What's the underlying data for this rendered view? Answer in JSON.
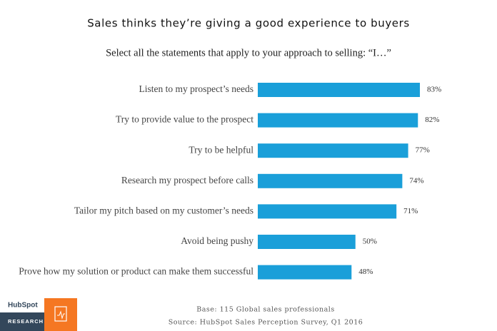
{
  "chart_data": {
    "type": "hbar",
    "title": "Sales thinks they’re giving a good experience to buyers",
    "subtitle": "Select all the statements that apply to your approach to selling: “I…”",
    "categories": [
      "Listen to my prospect’s needs",
      "Try to provide value to the prospect",
      "Try to be helpful",
      "Research my prospect before calls",
      "Tailor my pitch based on my customer’s needs",
      "Avoid being pushy",
      "Prove how my solution or product can make them successful"
    ],
    "values": [
      83,
      82,
      77,
      74,
      71,
      50,
      48
    ],
    "value_labels": [
      "83%",
      "82%",
      "77%",
      "74%",
      "71%",
      "50%",
      "48%"
    ],
    "color": "#1a9fd9",
    "footnotes": [
      "Base: 115 Global sales professionals",
      "Source: HubSpot Sales Perception Survey, Q1 2016"
    ]
  },
  "branding": {
    "logo": "HubSpot",
    "label": "RESEARCH"
  }
}
